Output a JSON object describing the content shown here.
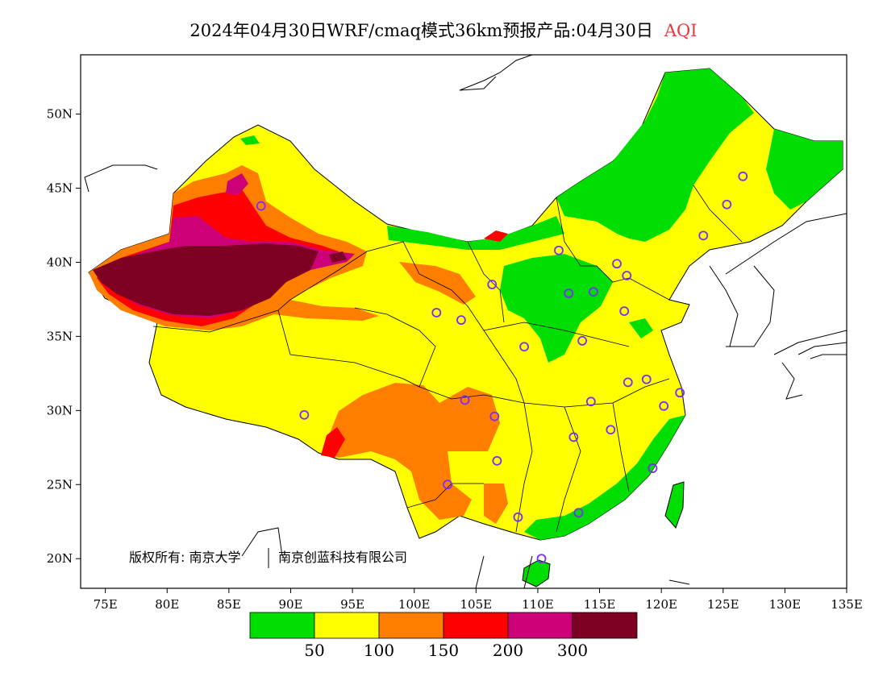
{
  "title": {
    "text": "2024年04月30日WRF/cmaq模式36km预报产品:04月30日",
    "variable": "AQI",
    "variable_color": "#e23b3b"
  },
  "map": {
    "lon_range": [
      73,
      135
    ],
    "lat_range": [
      18,
      54
    ],
    "lat_ticks": [
      "20N",
      "25N",
      "30N",
      "35N",
      "40N",
      "45N",
      "50N"
    ],
    "lon_ticks": [
      "75E",
      "80E",
      "85E",
      "90E",
      "95E",
      "100E",
      "105E",
      "110E",
      "115E",
      "120E",
      "125E",
      "130E",
      "135E"
    ],
    "copyright": {
      "left": "版权所有: 南京大学",
      "right": "南京创蓝科技有限公司"
    }
  },
  "legend": {
    "colors": [
      "#00dd00",
      "#ffff00",
      "#ff7e00",
      "#ff0000",
      "#cc0077",
      "#7e0023"
    ],
    "labels": [
      "50",
      "100",
      "150",
      "200",
      "300"
    ]
  },
  "stations": [
    {
      "lon": 87.6,
      "lat": 43.8
    },
    {
      "lon": 91.1,
      "lat": 29.7
    },
    {
      "lon": 101.8,
      "lat": 36.6
    },
    {
      "lon": 103.8,
      "lat": 36.1
    },
    {
      "lon": 106.3,
      "lat": 38.5
    },
    {
      "lon": 111.7,
      "lat": 40.8
    },
    {
      "lon": 112.5,
      "lat": 37.9
    },
    {
      "lon": 114.5,
      "lat": 38.0
    },
    {
      "lon": 116.4,
      "lat": 39.9
    },
    {
      "lon": 117.2,
      "lat": 39.1
    },
    {
      "lon": 117.0,
      "lat": 36.7
    },
    {
      "lon": 113.6,
      "lat": 34.7
    },
    {
      "lon": 108.9,
      "lat": 34.3
    },
    {
      "lon": 104.1,
      "lat": 30.7
    },
    {
      "lon": 106.5,
      "lat": 29.6
    },
    {
      "lon": 106.7,
      "lat": 26.6
    },
    {
      "lon": 102.7,
      "lat": 25.0
    },
    {
      "lon": 108.4,
      "lat": 22.8
    },
    {
      "lon": 113.3,
      "lat": 23.1
    },
    {
      "lon": 110.3,
      "lat": 20.0
    },
    {
      "lon": 112.9,
      "lat": 28.2
    },
    {
      "lon": 114.3,
      "lat": 30.6
    },
    {
      "lon": 115.9,
      "lat": 28.7
    },
    {
      "lon": 117.3,
      "lat": 31.9
    },
    {
      "lon": 118.8,
      "lat": 32.1
    },
    {
      "lon": 120.2,
      "lat": 30.3
    },
    {
      "lon": 121.5,
      "lat": 31.2
    },
    {
      "lon": 119.3,
      "lat": 26.1
    },
    {
      "lon": 123.4,
      "lat": 41.8
    },
    {
      "lon": 125.3,
      "lat": 43.9
    },
    {
      "lon": 126.6,
      "lat": 45.8
    }
  ]
}
